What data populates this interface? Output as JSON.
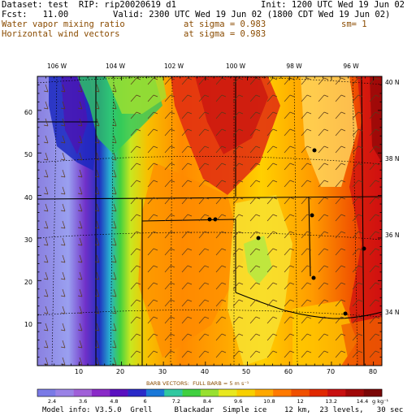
{
  "header": {
    "dataset": "Dataset: test  RIP: rip20020619 d1",
    "init": "Init: 1200 UTC Wed 19 Jun 02",
    "fcst": "Fcst:   11.00",
    "valid": "Valid: 2300 UTC Wed 19 Jun 02 (1800 CDT Wed 19 Jun 02)",
    "field1": "Water vapor mixing ratio",
    "field1_sigma": "at sigma = 0.983",
    "field1_sm": "sm= 1",
    "field2": "Horizontal wind vectors",
    "field2_sigma": "at sigma = 0.983"
  },
  "map": {
    "lon_labels": [
      "106 W",
      "104 W",
      "102 W",
      "100 W",
      "98 W",
      "96 W"
    ],
    "lat_labels": [
      "40 N",
      "38 N",
      "36 N",
      "34 N"
    ],
    "x_ticks": [
      "10",
      "20",
      "30",
      "40",
      "50",
      "60",
      "70",
      "80"
    ],
    "y_ticks": [
      "10",
      "20",
      "30",
      "40",
      "50",
      "60"
    ]
  },
  "colorbar": {
    "labels": [
      "2.4",
      "3.6",
      "4.8",
      "6",
      "7.2",
      "8.4",
      "9.6",
      "10.8",
      "12",
      "13.2",
      "14.4"
    ],
    "units": "g kg⁻¹",
    "colors": [
      "#7a7ae6",
      "#9a82e6",
      "#a060d8",
      "#8a2ac8",
      "#5a10c0",
      "#2a2ac8",
      "#1a78d8",
      "#30c8a0",
      "#40d040",
      "#98e030",
      "#e8e820",
      "#f8d000",
      "#ffa800",
      "#ff7a00",
      "#f05000",
      "#e02800",
      "#c81010",
      "#a00808",
      "#7a0606"
    ]
  },
  "barbs_note": "BARB VECTORS:  FULL BARB = 5 m s⁻¹",
  "footer": "Model info: V3.5.0  Grell     Blackadar  Simple ice    12 km,  23 levels,   30 sec"
}
